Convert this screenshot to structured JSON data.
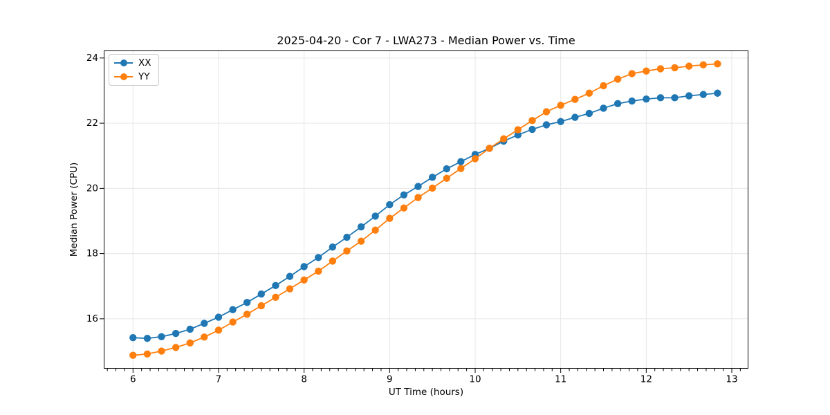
{
  "title": "2025-04-20 - Cor 7 - LWA273 - Median Power vs. Time",
  "xlabel": "UT Time (hours)",
  "ylabel": "Median Power (CPU)",
  "legend": {
    "items": [
      {
        "label": "XX",
        "color": "#1f77b4"
      },
      {
        "label": "YY",
        "color": "#ff7f0e"
      }
    ]
  },
  "chart_data": {
    "type": "line",
    "title": "2025-04-20 - Cor 7 - LWA273 - Median Power vs. Time",
    "xlabel": "UT Time (hours)",
    "ylabel": "Median Power (CPU)",
    "x": [
      6.0,
      6.167,
      6.333,
      6.5,
      6.667,
      6.833,
      7.0,
      7.167,
      7.333,
      7.5,
      7.667,
      7.833,
      8.0,
      8.167,
      8.333,
      8.5,
      8.667,
      8.833,
      9.0,
      9.167,
      9.333,
      9.5,
      9.667,
      9.833,
      10.0,
      10.167,
      10.333,
      10.5,
      10.667,
      10.833,
      11.0,
      11.167,
      11.333,
      11.5,
      11.667,
      11.833,
      12.0,
      12.167,
      12.333,
      12.5,
      12.667,
      12.833
    ],
    "series": [
      {
        "name": "XX",
        "color": "#1f77b4",
        "values": [
          15.42,
          15.4,
          15.45,
          15.55,
          15.68,
          15.86,
          16.05,
          16.28,
          16.5,
          16.76,
          17.02,
          17.3,
          17.6,
          17.88,
          18.2,
          18.5,
          18.82,
          19.15,
          19.5,
          19.8,
          20.06,
          20.34,
          20.6,
          20.82,
          21.04,
          21.23,
          21.45,
          21.64,
          21.81,
          21.95,
          22.05,
          22.18,
          22.3,
          22.46,
          22.6,
          22.68,
          22.74,
          22.78,
          22.78,
          22.84,
          22.88,
          22.92
        ]
      },
      {
        "name": "YY",
        "color": "#ff7f0e",
        "values": [
          14.88,
          14.92,
          15.01,
          15.12,
          15.26,
          15.44,
          15.65,
          15.9,
          16.14,
          16.4,
          16.66,
          16.92,
          17.19,
          17.46,
          17.77,
          18.08,
          18.38,
          18.72,
          19.08,
          19.4,
          19.72,
          20.01,
          20.31,
          20.61,
          20.91,
          21.23,
          21.52,
          21.8,
          22.08,
          22.35,
          22.55,
          22.73,
          22.92,
          23.15,
          23.35,
          23.52,
          23.6,
          23.67,
          23.7,
          23.75,
          23.79,
          23.82
        ]
      }
    ],
    "xlim": [
      5.658,
      13.194
    ],
    "ylim": [
      14.47,
      24.23
    ],
    "x_major_ticks": [
      6,
      7,
      8,
      9,
      10,
      11,
      12,
      13
    ],
    "y_major_ticks": [
      16,
      18,
      20,
      22,
      24
    ],
    "x_minor_step": 0.1,
    "grid": true,
    "grid_color": "#e6e6e6",
    "legend_position": "upper left",
    "marker": "circle"
  }
}
